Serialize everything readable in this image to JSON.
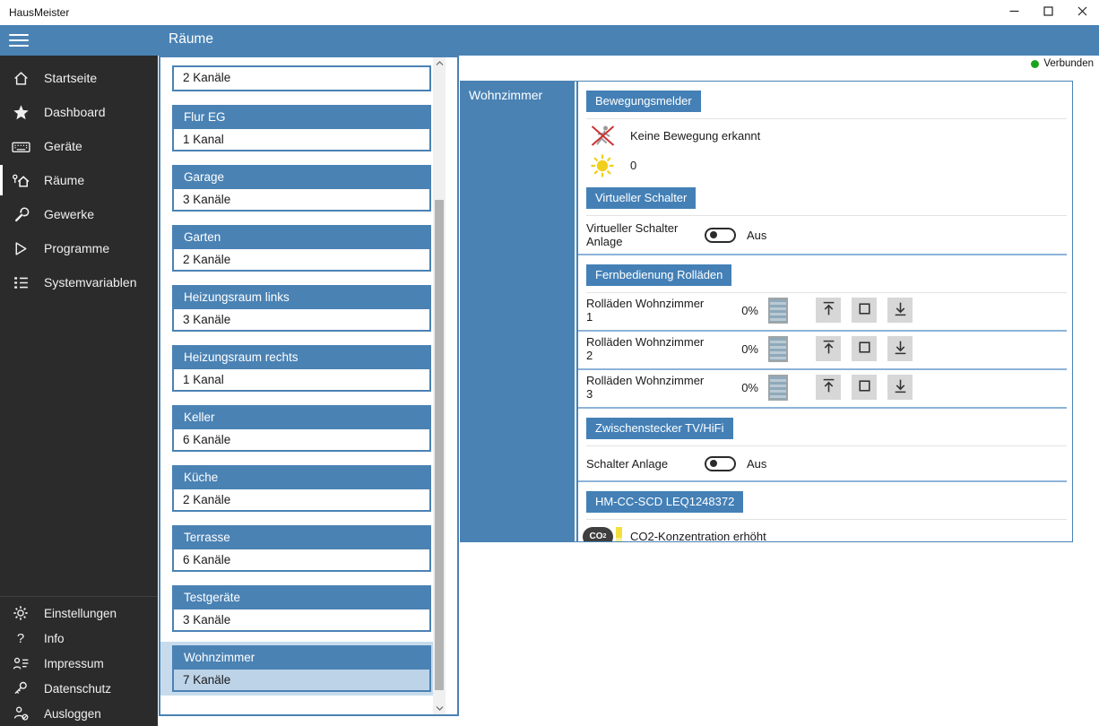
{
  "window": {
    "title": "HausMeister",
    "controls": [
      {
        "name": "minimize-button",
        "icon": "minimize-icon"
      },
      {
        "name": "maximize-button",
        "icon": "maximize-icon"
      },
      {
        "name": "close-button",
        "icon": "close-icon"
      }
    ]
  },
  "header": {
    "title": "Räume",
    "menu_icon": "hamburger-icon"
  },
  "status": {
    "label": "Verbunden",
    "dot_color": "#1ba41b"
  },
  "sidebar": {
    "items": [
      {
        "label": "Startseite",
        "icon": "home-icon",
        "selected": false
      },
      {
        "label": "Dashboard",
        "icon": "star-icon",
        "selected": false
      },
      {
        "label": "Geräte",
        "icon": "keyboard-icon",
        "selected": false
      },
      {
        "label": "Räume",
        "icon": "rooms-icon",
        "selected": true
      },
      {
        "label": "Gewerke",
        "icon": "wrench-icon",
        "selected": false
      },
      {
        "label": "Programme",
        "icon": "play-icon",
        "selected": false
      },
      {
        "label": "Systemvariablen",
        "icon": "list-icon",
        "selected": false
      }
    ],
    "footer_items": [
      {
        "label": "Einstellungen",
        "icon": "gear-icon"
      },
      {
        "label": "Info",
        "icon": "question-icon"
      },
      {
        "label": "Impressum",
        "icon": "contact-icon"
      },
      {
        "label": "Datenschutz",
        "icon": "key-icon"
      },
      {
        "label": "Ausloggen",
        "icon": "logout-icon"
      }
    ]
  },
  "room_list": {
    "partial_item": {
      "channels": "2 Kanäle"
    },
    "items": [
      {
        "name": "Flur EG",
        "channels": "1 Kanal",
        "selected": false
      },
      {
        "name": "Garage",
        "channels": "3 Kanäle",
        "selected": false
      },
      {
        "name": "Garten",
        "channels": "2 Kanäle",
        "selected": false
      },
      {
        "name": "Heizungsraum links",
        "channels": "3 Kanäle",
        "selected": false
      },
      {
        "name": "Heizungsraum rechts",
        "channels": "1 Kanal",
        "selected": false
      },
      {
        "name": "Keller",
        "channels": "6 Kanäle",
        "selected": false
      },
      {
        "name": "Küche",
        "channels": "2 Kanäle",
        "selected": false
      },
      {
        "name": "Terrasse",
        "channels": "6 Kanäle",
        "selected": false
      },
      {
        "name": "Testgeräte",
        "channels": "3 Kanäle",
        "selected": false
      },
      {
        "name": "Wohnzimmer",
        "channels": "7 Kanäle",
        "selected": true
      }
    ]
  },
  "detail": {
    "room": "Wohnzimmer",
    "sections": [
      {
        "type": "badge",
        "label": "Bewegungsmelder"
      },
      {
        "type": "sep",
        "style": "gray"
      },
      {
        "type": "icon_row",
        "icon": "no-motion-icon",
        "label": "Keine Bewegung erkannt"
      },
      {
        "type": "icon_row",
        "icon": "sun-icon",
        "label": "0"
      },
      {
        "type": "badge",
        "label": "Virtueller Schalter"
      },
      {
        "type": "sep",
        "style": "gray"
      },
      {
        "type": "toggle_row",
        "label": "Virtueller Schalter Anlage",
        "state": "Aus",
        "on": false
      },
      {
        "type": "sep",
        "style": "blue"
      },
      {
        "type": "badge",
        "label": "Fernbedienung Rolläden"
      },
      {
        "type": "sep",
        "style": "gray"
      },
      {
        "type": "shutter_row",
        "label": "Rolläden Wohnzimmer 1",
        "percent": "0%"
      },
      {
        "type": "sep",
        "style": "blue"
      },
      {
        "type": "shutter_row",
        "label": "Rolläden Wohnzimmer 2",
        "percent": "0%"
      },
      {
        "type": "sep",
        "style": "blue"
      },
      {
        "type": "shutter_row",
        "label": "Rolläden Wohnzimmer 3",
        "percent": "0%"
      },
      {
        "type": "sep",
        "style": "blue"
      },
      {
        "type": "badge",
        "label": "Zwischenstecker TV/HiFi"
      },
      {
        "type": "sep",
        "style": "gray"
      },
      {
        "type": "toggle_row",
        "label": "Schalter Anlage",
        "state": "Aus",
        "on": false
      },
      {
        "type": "sep",
        "style": "blue"
      },
      {
        "type": "badge",
        "label": "HM-CC-SCD LEQ1248372"
      },
      {
        "type": "sep",
        "style": "gray"
      },
      {
        "type": "icon_row",
        "icon": "co2-icon",
        "label": "CO2-Konzentration erhöht"
      }
    ],
    "shutter_buttons": [
      {
        "name": "shutter-up-button",
        "icon": "shutter-up-icon"
      },
      {
        "name": "shutter-stop-button",
        "icon": "shutter-stop-icon"
      },
      {
        "name": "shutter-down-button",
        "icon": "shutter-down-icon"
      }
    ]
  },
  "colors": {
    "accent_blue": "#4a82b4",
    "badge_blue": "#4480b6",
    "row_separator_blue": "#8db4d9",
    "selected_room_highlight": "#c7dbec",
    "selected_room_body": "#bdd3e8",
    "sidebar_bg": "#2b2b2b",
    "connected_green": "#1ba41b"
  }
}
